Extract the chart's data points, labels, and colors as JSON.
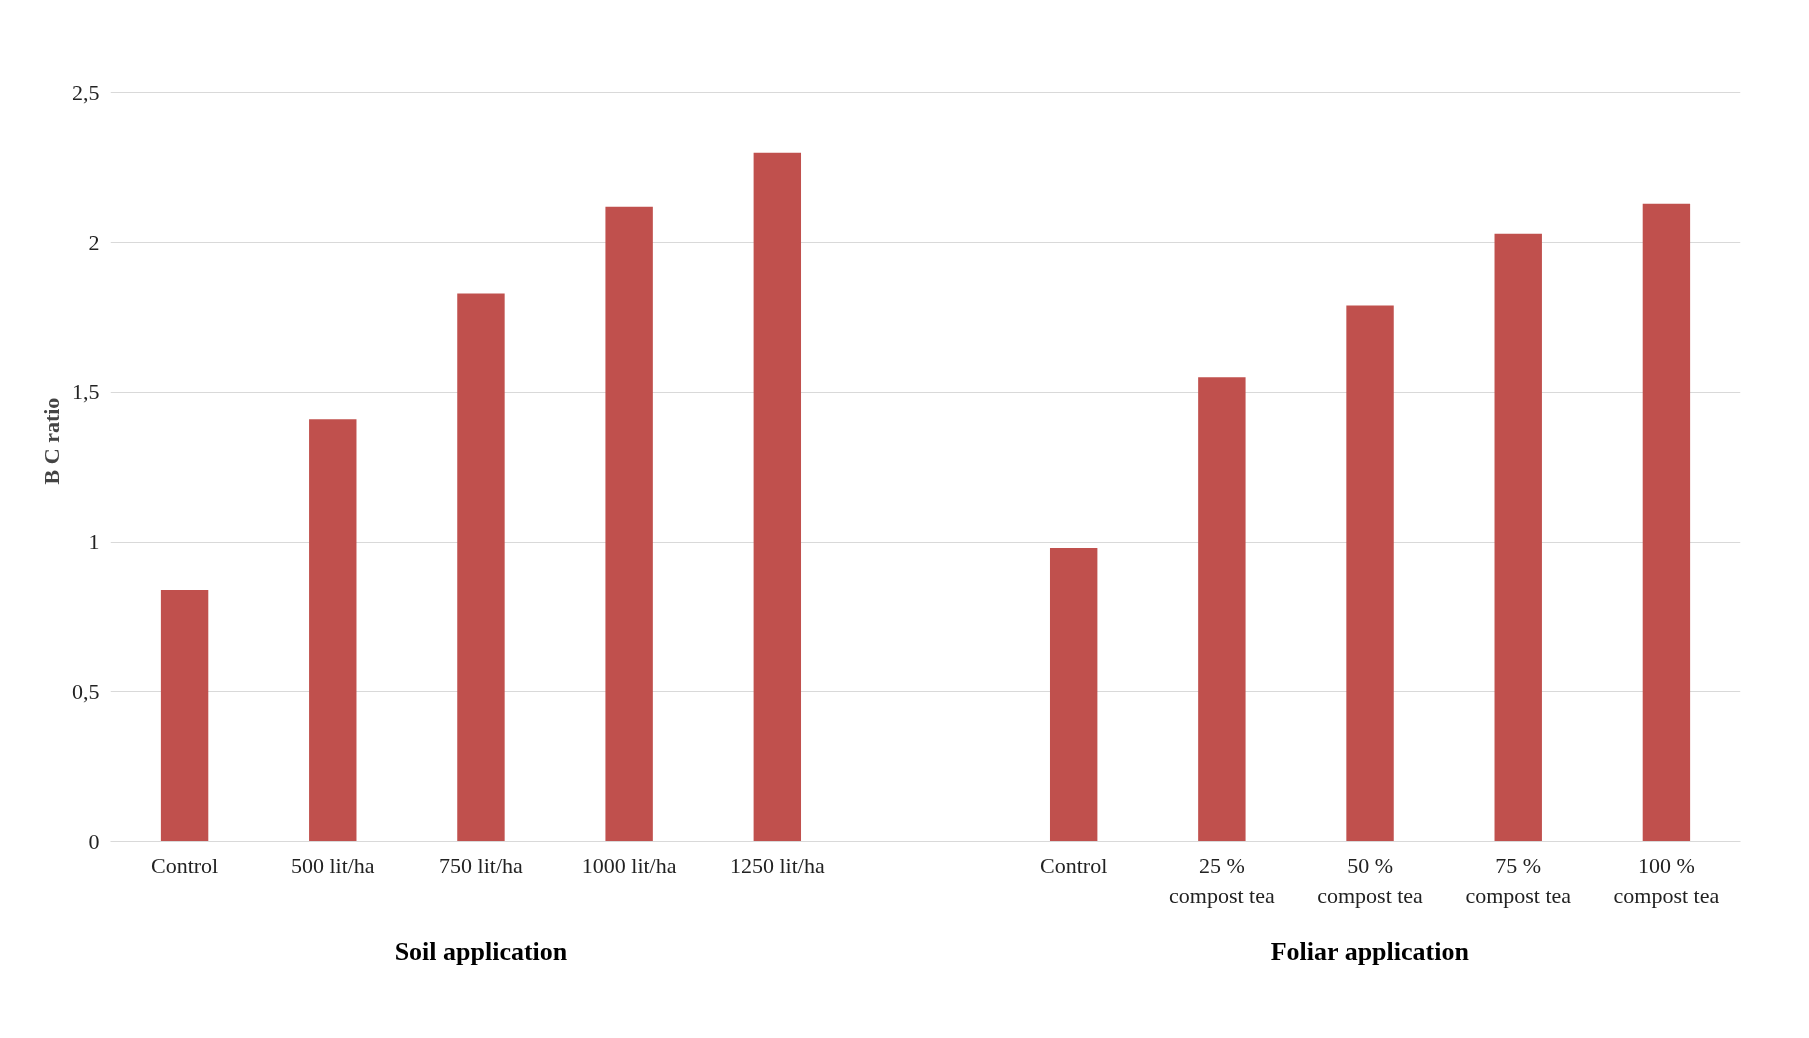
{
  "chart_data": {
    "type": "bar",
    "ylabel": "B C ratio",
    "categories": [
      "Control",
      "500 lit/ha",
      "750 lit/ha",
      "1000 lit/ha",
      "1250 lit/ha",
      null,
      "Control",
      "25 %\ncompost tea",
      "50 %\ncompost tea",
      "75 %\ncompost tea",
      "100 %\ncompost tea"
    ],
    "values": [
      0.84,
      1.41,
      1.83,
      2.12,
      2.3,
      null,
      0.98,
      1.55,
      1.79,
      2.03,
      2.13
    ],
    "color": "#c0504d",
    "ylim": [
      0,
      2.5
    ],
    "yticks": [
      0,
      {
        "value": 0.5,
        "label": "0,5"
      },
      1,
      {
        "value": 1.5,
        "label": "1,5"
      },
      2,
      {
        "value": 2.5,
        "label": "2,5"
      }
    ],
    "grid": "y",
    "annotations": [
      "Soil application",
      "Foliar application"
    ]
  }
}
